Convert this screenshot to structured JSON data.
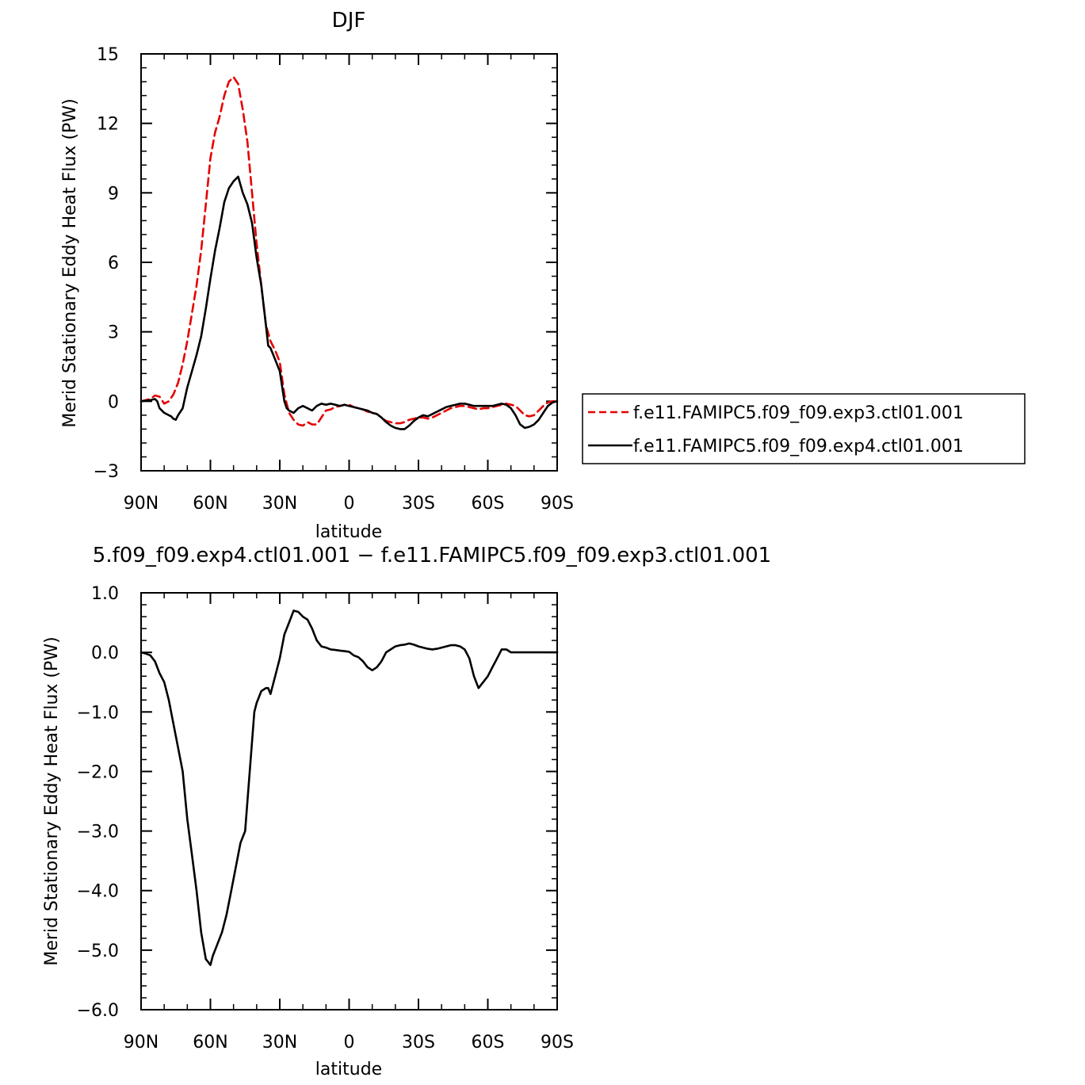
{
  "chart_data": [
    {
      "type": "line",
      "title": "DJF",
      "xlabel": "latitude",
      "ylabel": "Merid Stationary Eddy Heat Flux (PW)",
      "xlim": [
        90,
        -90
      ],
      "ylim": [
        -3,
        15
      ],
      "xticks": [
        90,
        60,
        30,
        0,
        -30,
        -60,
        -90
      ],
      "xtick_labels": [
        "90N",
        "60N",
        "30N",
        "0",
        "30S",
        "60S",
        "90S"
      ],
      "yticks": [
        -3,
        0,
        3,
        6,
        9,
        12,
        15
      ],
      "ytick_labels": [
        "−3",
        "0",
        "3",
        "6",
        "9",
        "12",
        "15"
      ],
      "grid": false,
      "legend_position": "right",
      "series": [
        {
          "name": "f.e11.FAMIPC5.f09_f09.exp3.ctl01.001",
          "color": "#e60000",
          "dash": "dashed",
          "points": [
            [
              90,
              0
            ],
            [
              86,
              0.1
            ],
            [
              84,
              0.25
            ],
            [
              82,
              0.2
            ],
            [
              80,
              -0.1
            ],
            [
              78,
              0
            ],
            [
              76,
              0.3
            ],
            [
              74,
              0.8
            ],
            [
              72,
              1.6
            ],
            [
              70,
              2.6
            ],
            [
              68,
              3.8
            ],
            [
              66,
              5.0
            ],
            [
              64,
              6.5
            ],
            [
              62,
              8.5
            ],
            [
              60,
              10.5
            ],
            [
              58,
              11.6
            ],
            [
              56,
              12.3
            ],
            [
              54,
              13.2
            ],
            [
              52,
              13.8
            ],
            [
              50,
              14.0
            ],
            [
              48,
              13.7
            ],
            [
              46,
              12.6
            ],
            [
              44,
              11.2
            ],
            [
              42,
              9.0
            ],
            [
              40,
              6.8
            ],
            [
              38,
              5.0
            ],
            [
              36,
              3.3
            ],
            [
              34,
              2.6
            ],
            [
              32,
              2.2
            ],
            [
              30,
              1.7
            ],
            [
              28,
              0.3
            ],
            [
              26,
              -0.5
            ],
            [
              24,
              -0.8
            ],
            [
              22,
              -1.0
            ],
            [
              20,
              -1.05
            ],
            [
              18,
              -0.9
            ],
            [
              16,
              -1.0
            ],
            [
              14,
              -1.0
            ],
            [
              12,
              -0.7
            ],
            [
              10,
              -0.4
            ],
            [
              8,
              -0.35
            ],
            [
              6,
              -0.25
            ],
            [
              4,
              -0.2
            ],
            [
              2,
              -0.15
            ],
            [
              0,
              -0.15
            ],
            [
              -2,
              -0.25
            ],
            [
              -4,
              -0.3
            ],
            [
              -6,
              -0.35
            ],
            [
              -8,
              -0.45
            ],
            [
              -10,
              -0.5
            ],
            [
              -12,
              -0.55
            ],
            [
              -14,
              -0.7
            ],
            [
              -16,
              -0.85
            ],
            [
              -18,
              -0.9
            ],
            [
              -20,
              -0.95
            ],
            [
              -22,
              -0.95
            ],
            [
              -24,
              -0.9
            ],
            [
              -26,
              -0.8
            ],
            [
              -28,
              -0.75
            ],
            [
              -30,
              -0.7
            ],
            [
              -32,
              -0.7
            ],
            [
              -34,
              -0.75
            ],
            [
              -36,
              -0.7
            ],
            [
              -38,
              -0.6
            ],
            [
              -40,
              -0.5
            ],
            [
              -42,
              -0.4
            ],
            [
              -44,
              -0.3
            ],
            [
              -46,
              -0.25
            ],
            [
              -48,
              -0.2
            ],
            [
              -50,
              -0.2
            ],
            [
              -52,
              -0.25
            ],
            [
              -54,
              -0.3
            ],
            [
              -56,
              -0.35
            ],
            [
              -58,
              -0.3
            ],
            [
              -60,
              -0.3
            ],
            [
              -62,
              -0.25
            ],
            [
              -64,
              -0.2
            ],
            [
              -66,
              -0.15
            ],
            [
              -68,
              -0.1
            ],
            [
              -70,
              -0.15
            ],
            [
              -72,
              -0.2
            ],
            [
              -74,
              -0.4
            ],
            [
              -76,
              -0.6
            ],
            [
              -78,
              -0.65
            ],
            [
              -80,
              -0.6
            ],
            [
              -82,
              -0.4
            ],
            [
              -84,
              -0.2
            ],
            [
              -86,
              -0.05
            ],
            [
              -88,
              0
            ],
            [
              -90,
              0
            ]
          ]
        },
        {
          "name": "f.e11.FAMIPC5.f09_f09.exp4.ctl01.001",
          "color": "#000000",
          "dash": "solid",
          "points": [
            [
              90,
              0
            ],
            [
              86,
              0.05
            ],
            [
              84,
              0.1
            ],
            [
              83,
              0
            ],
            [
              82,
              -0.3
            ],
            [
              80,
              -0.5
            ],
            [
              78,
              -0.6
            ],
            [
              77,
              -0.65
            ],
            [
              76,
              -0.75
            ],
            [
              75,
              -0.8
            ],
            [
              74,
              -0.6
            ],
            [
              72,
              -0.3
            ],
            [
              70,
              0.6
            ],
            [
              68,
              1.3
            ],
            [
              66,
              2.0
            ],
            [
              64,
              2.8
            ],
            [
              62,
              4.0
            ],
            [
              60,
              5.3
            ],
            [
              58,
              6.5
            ],
            [
              56,
              7.5
            ],
            [
              54,
              8.6
            ],
            [
              52,
              9.2
            ],
            [
              50,
              9.5
            ],
            [
              48,
              9.7
            ],
            [
              46,
              9.0
            ],
            [
              44,
              8.5
            ],
            [
              42,
              7.7
            ],
            [
              40,
              6.2
            ],
            [
              38,
              5.0
            ],
            [
              36,
              3.3
            ],
            [
              35,
              2.4
            ],
            [
              34,
              2.3
            ],
            [
              32,
              1.8
            ],
            [
              30,
              1.3
            ],
            [
              28,
              0
            ],
            [
              27,
              -0.3
            ],
            [
              26,
              -0.4
            ],
            [
              24,
              -0.5
            ],
            [
              22,
              -0.3
            ],
            [
              20,
              -0.2
            ],
            [
              18,
              -0.3
            ],
            [
              16,
              -0.4
            ],
            [
              14,
              -0.2
            ],
            [
              12,
              -0.1
            ],
            [
              10,
              -0.15
            ],
            [
              8,
              -0.1
            ],
            [
              6,
              -0.15
            ],
            [
              4,
              -0.2
            ],
            [
              2,
              -0.15
            ],
            [
              0,
              -0.2
            ],
            [
              -2,
              -0.25
            ],
            [
              -4,
              -0.3
            ],
            [
              -6,
              -0.35
            ],
            [
              -8,
              -0.4
            ],
            [
              -10,
              -0.5
            ],
            [
              -12,
              -0.55
            ],
            [
              -14,
              -0.7
            ],
            [
              -16,
              -0.9
            ],
            [
              -18,
              -1.05
            ],
            [
              -20,
              -1.15
            ],
            [
              -22,
              -1.2
            ],
            [
              -24,
              -1.2
            ],
            [
              -26,
              -1.05
            ],
            [
              -28,
              -0.85
            ],
            [
              -30,
              -0.7
            ],
            [
              -32,
              -0.6
            ],
            [
              -34,
              -0.65
            ],
            [
              -36,
              -0.55
            ],
            [
              -38,
              -0.45
            ],
            [
              -40,
              -0.35
            ],
            [
              -42,
              -0.25
            ],
            [
              -44,
              -0.2
            ],
            [
              -46,
              -0.15
            ],
            [
              -48,
              -0.1
            ],
            [
              -50,
              -0.1
            ],
            [
              -52,
              -0.15
            ],
            [
              -54,
              -0.2
            ],
            [
              -56,
              -0.2
            ],
            [
              -58,
              -0.2
            ],
            [
              -60,
              -0.2
            ],
            [
              -62,
              -0.2
            ],
            [
              -64,
              -0.15
            ],
            [
              -66,
              -0.1
            ],
            [
              -68,
              -0.15
            ],
            [
              -70,
              -0.3
            ],
            [
              -72,
              -0.6
            ],
            [
              -74,
              -1.0
            ],
            [
              -76,
              -1.15
            ],
            [
              -78,
              -1.1
            ],
            [
              -80,
              -1.0
            ],
            [
              -82,
              -0.8
            ],
            [
              -84,
              -0.5
            ],
            [
              -86,
              -0.2
            ],
            [
              -88,
              -0.05
            ],
            [
              -90,
              0
            ]
          ]
        }
      ]
    },
    {
      "type": "line",
      "title": "5.f09_f09.exp4.ctl01.001 − f.e11.FAMIPC5.f09_f09.exp3.ctl01.001",
      "xlabel": "latitude",
      "ylabel": "Merid Stationary Eddy Heat Flux (PW)",
      "xlim": [
        90,
        -90
      ],
      "ylim": [
        -6,
        1
      ],
      "xticks": [
        90,
        60,
        30,
        0,
        -30,
        -60,
        -90
      ],
      "xtick_labels": [
        "90N",
        "60N",
        "30N",
        "0",
        "30S",
        "60S",
        "90S"
      ],
      "yticks": [
        -6,
        -5,
        -4,
        -3,
        -2,
        -1,
        0,
        1
      ],
      "ytick_labels": [
        "−6.0",
        "−5.0",
        "−4.0",
        "−3.0",
        "−2.0",
        "−1.0",
        "0.0",
        "1.0"
      ],
      "grid": false,
      "series": [
        {
          "color": "#000000",
          "dash": "solid",
          "points": [
            [
              90,
              0
            ],
            [
              88,
              -0.02
            ],
            [
              86,
              -0.05
            ],
            [
              84,
              -0.15
            ],
            [
              82,
              -0.35
            ],
            [
              80,
              -0.5
            ],
            [
              78,
              -0.8
            ],
            [
              76,
              -1.2
            ],
            [
              74,
              -1.6
            ],
            [
              72,
              -2.0
            ],
            [
              70,
              -2.8
            ],
            [
              68,
              -3.4
            ],
            [
              66,
              -4.0
            ],
            [
              64,
              -4.7
            ],
            [
              62,
              -5.15
            ],
            [
              60,
              -5.25
            ],
            [
              59,
              -5.1
            ],
            [
              57,
              -4.9
            ],
            [
              55,
              -4.7
            ],
            [
              53,
              -4.4
            ],
            [
              51,
              -4.0
            ],
            [
              49,
              -3.6
            ],
            [
              47,
              -3.2
            ],
            [
              45,
              -3.0
            ],
            [
              43,
              -2.0
            ],
            [
              41,
              -1.0
            ],
            [
              40,
              -0.85
            ],
            [
              38,
              -0.65
            ],
            [
              36,
              -0.6
            ],
            [
              35,
              -0.6
            ],
            [
              34,
              -0.7
            ],
            [
              32,
              -0.4
            ],
            [
              30,
              -0.1
            ],
            [
              28,
              0.3
            ],
            [
              26,
              0.5
            ],
            [
              24,
              0.7
            ],
            [
              22,
              0.68
            ],
            [
              20,
              0.6
            ],
            [
              18,
              0.55
            ],
            [
              16,
              0.4
            ],
            [
              14,
              0.2
            ],
            [
              12,
              0.1
            ],
            [
              10,
              0.08
            ],
            [
              8,
              0.05
            ],
            [
              6,
              0.04
            ],
            [
              4,
              0.03
            ],
            [
              2,
              0.02
            ],
            [
              0,
              0.01
            ],
            [
              -2,
              -0.05
            ],
            [
              -4,
              -0.08
            ],
            [
              -6,
              -0.15
            ],
            [
              -8,
              -0.25
            ],
            [
              -10,
              -0.3
            ],
            [
              -12,
              -0.25
            ],
            [
              -14,
              -0.15
            ],
            [
              -16,
              0
            ],
            [
              -18,
              0.05
            ],
            [
              -20,
              0.1
            ],
            [
              -22,
              0.12
            ],
            [
              -24,
              0.13
            ],
            [
              -26,
              0.15
            ],
            [
              -28,
              0.13
            ],
            [
              -30,
              0.1
            ],
            [
              -32,
              0.08
            ],
            [
              -34,
              0.06
            ],
            [
              -36,
              0.05
            ],
            [
              -38,
              0.06
            ],
            [
              -40,
              0.08
            ],
            [
              -42,
              0.1
            ],
            [
              -44,
              0.12
            ],
            [
              -46,
              0.12
            ],
            [
              -48,
              0.1
            ],
            [
              -50,
              0.05
            ],
            [
              -52,
              -0.1
            ],
            [
              -54,
              -0.4
            ],
            [
              -56,
              -0.6
            ],
            [
              -58,
              -0.5
            ],
            [
              -60,
              -0.4
            ],
            [
              -62,
              -0.25
            ],
            [
              -64,
              -0.1
            ],
            [
              -66,
              0.05
            ],
            [
              -68,
              0.05
            ],
            [
              -70,
              0
            ],
            [
              -90,
              0
            ]
          ]
        }
      ]
    }
  ]
}
